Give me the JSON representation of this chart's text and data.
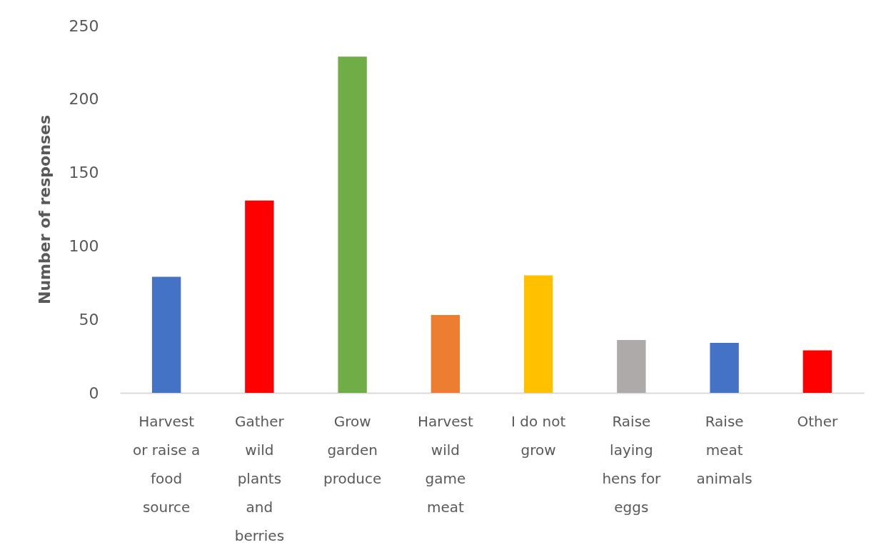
{
  "chart_data": {
    "type": "bar",
    "ylabel": "Number of responses",
    "categories": [
      "Harvest or raise a food source",
      "Gather wild plants and berries",
      "Grow garden produce",
      "Harvest wild game meat",
      "I do not grow",
      "Raise laying hens for eggs",
      "Raise meat animals",
      "Other"
    ],
    "values": [
      79,
      131,
      229,
      53,
      80,
      36,
      34,
      29
    ],
    "colors": [
      "#4472c4",
      "#ff0000",
      "#70ad47",
      "#ed7d31",
      "#ffc000",
      "#aeaaaa",
      "#4472c4",
      "#ff0000"
    ],
    "ylim": [
      0,
      250
    ],
    "yticks": [
      0,
      50,
      100,
      150,
      200,
      250
    ]
  }
}
